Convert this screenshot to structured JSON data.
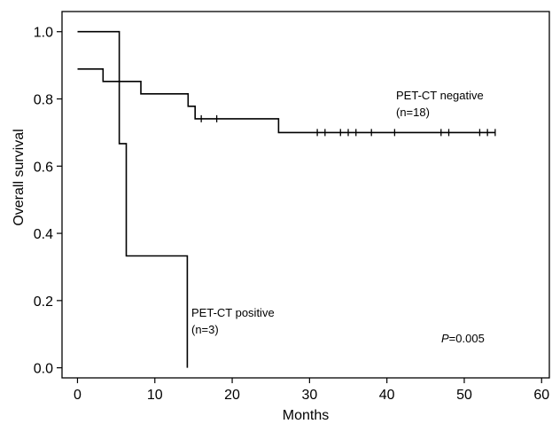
{
  "chart_data": {
    "type": "line",
    "subtype": "kaplan-meier",
    "title": "",
    "xlabel": "Months",
    "ylabel": "Overall survival",
    "xlim": [
      -2,
      61
    ],
    "ylim": [
      -0.03,
      1.06
    ],
    "x_ticks": [
      0,
      10,
      20,
      30,
      40,
      50,
      60
    ],
    "x_tick_labels": [
      "0",
      "10",
      "20",
      "30",
      "40",
      "50",
      "60"
    ],
    "y_ticks": [
      0.0,
      0.2,
      0.4,
      0.6,
      0.8,
      1.0
    ],
    "y_tick_labels": [
      "0.0",
      "0.2",
      "0.4",
      "0.6",
      "0.8",
      "1.0"
    ],
    "grid": false,
    "legend": "none",
    "series": [
      {
        "name": "PET-CT negative",
        "label_lines": [
          "PET-CT negative",
          "(n=18)"
        ],
        "steps": [
          [
            0,
            0.889
          ],
          [
            3.3,
            0.852
          ],
          [
            8.2,
            0.815
          ],
          [
            14.3,
            0.778
          ],
          [
            15.2,
            0.741
          ],
          [
            26,
            0.7
          ],
          [
            54,
            0.7
          ]
        ],
        "censored": [
          16,
          18,
          31,
          32,
          34,
          35,
          36,
          38,
          41,
          47,
          48,
          52,
          53,
          54
        ]
      },
      {
        "name": "PET-CT positive",
        "label_lines": [
          "PET-CT positive",
          "(n=3)"
        ],
        "steps": [
          [
            0,
            1.0
          ],
          [
            5.4,
            0.667
          ],
          [
            6.3,
            0.333
          ],
          [
            14.2,
            0.0
          ]
        ],
        "censored": []
      }
    ],
    "annotations": [
      {
        "text_prefix": "P",
        "text_suffix": "=0.005"
      }
    ]
  }
}
